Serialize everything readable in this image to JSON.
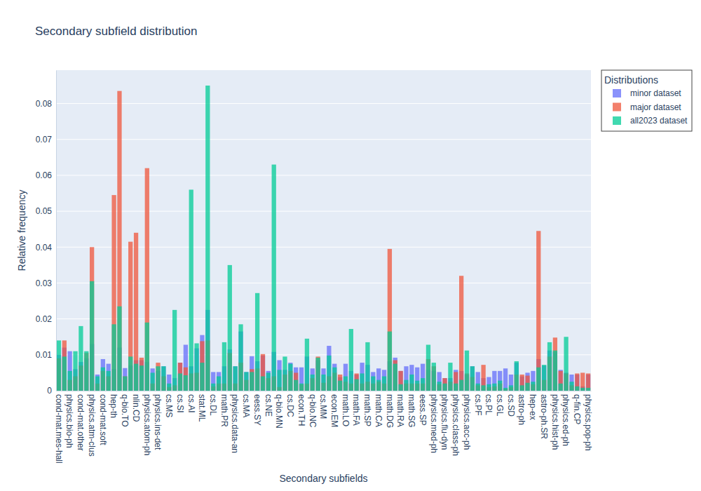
{
  "chart_data": {
    "type": "bar",
    "title": "Secondary subfield distribution",
    "x_label": "Secondary subfields",
    "y_label": "Relative frequency",
    "legend_title": "Distributions",
    "legend": "right",
    "grid": true,
    "ylim": [
      0,
      0.0893
    ],
    "yticks": [
      0,
      0.01,
      0.02,
      0.03,
      0.04,
      0.05,
      0.06,
      0.07,
      0.08
    ],
    "categories": [
      "cond-mat.mes-hall",
      null,
      "physics.bio-ph",
      null,
      "cond-mat.other",
      null,
      "physics.atm-clus",
      null,
      "cond-mat.soft",
      null,
      "hep-th",
      null,
      "q-bio.TO",
      null,
      "nlin.CD",
      null,
      "physics.atom-ph",
      null,
      "physics.ins-det",
      null,
      "cs.MS",
      null,
      "cs.SI",
      null,
      "cs.AI",
      null,
      "stat.ML",
      null,
      "cs.DL",
      null,
      "math.PR",
      null,
      "physics.data-an",
      null,
      "cs.MA",
      null,
      "eess.SY",
      null,
      "cs.NE",
      null,
      "q-bio.MN",
      null,
      "cs.DC",
      null,
      "econ.TH",
      null,
      "q-bio.NC",
      null,
      "cs.MM",
      null,
      "econ.EM",
      null,
      "math.LO",
      null,
      "math.FA",
      null,
      "math.SP",
      null,
      "math.CA",
      null,
      "math.DG",
      null,
      "math.RA",
      null,
      "math.SG",
      null,
      "eess.SP",
      null,
      "physics.med-ph",
      null,
      "physics.flu-dyn",
      null,
      "physics.class-ph",
      null,
      "physics.acc-ph",
      null,
      "cs.PF",
      null,
      "cs.PL",
      null,
      "cs.GL",
      null,
      "cs.SD",
      null,
      "astro-ph",
      null,
      "hep-ex",
      null,
      "astro-ph.SR",
      null,
      "physics.hist-ph",
      null,
      "physics.ed-ph",
      null,
      "q-fin.CP",
      null,
      "physics.pop-ph"
    ],
    "series": [
      {
        "name": "minor dataset",
        "color": "#636efa",
        "values": [
          0.01,
          0.012,
          0.011,
          0.006,
          0.008,
          0.009,
          0.013,
          0.0045,
          0.0088,
          0.0075,
          0.006,
          0.012,
          0.0063,
          0.007,
          0.0085,
          0.0085,
          0.008,
          0.0062,
          0.0055,
          0.0068,
          0.0045,
          0.0035,
          0.0078,
          0.0128,
          0.0068,
          0.0118,
          0.0155,
          0.0225,
          0.0052,
          0.0052,
          0.0068,
          0.0115,
          0.0068,
          0.0165,
          0.0052,
          0.0096,
          0.0082,
          0.0098,
          0.0055,
          0.0108,
          0.0085,
          0.0058,
          0.0078,
          0.0065,
          0.0065,
          0.0095,
          0.0062,
          0.0085,
          0.0062,
          0.0125,
          0.0075,
          0.0038,
          0.0075,
          0.0055,
          0.0045,
          0.0078,
          0.0072,
          0.0052,
          0.0062,
          0.0058,
          0.0082,
          0.0092,
          0.0055,
          0.0068,
          0.0072,
          0.0065,
          0.0075,
          0.0058,
          0.0055,
          0.0052,
          0.0035,
          0.0035,
          0.0058,
          0.0055,
          0.0045,
          0.0068,
          0.0052,
          0.0035,
          0.0038,
          0.0055,
          0.0055,
          0.0062,
          0.0045,
          0.0078,
          0.004,
          0.005,
          0.0055,
          0.0088,
          0.007,
          0.0112,
          0.0108,
          0.0058,
          0.005,
          0.0045,
          0.0045,
          0.0012,
          0.0045
        ]
      },
      {
        "name": "major dataset",
        "color": "#ef553b",
        "values": [
          0.009,
          0.014,
          0.003,
          0.004,
          0.007,
          0.0105,
          0.04,
          0.002,
          0.0055,
          0.004,
          0.0545,
          0.0835,
          0.004,
          0.0415,
          0.044,
          0.0092,
          0.062,
          0.002,
          0.0078,
          0.004,
          0.001,
          0.0015,
          0.0078,
          0.0065,
          0.0048,
          0.005,
          0.0138,
          0.014,
          0.0012,
          0.002,
          0.002,
          0.0105,
          0.002,
          0.0078,
          0.003,
          0.006,
          0.0062,
          0.0102,
          0.0035,
          0.004,
          0.001,
          0.0045,
          0.0055,
          0.005,
          0.0018,
          0.002,
          0.0035,
          0.0095,
          0.0022,
          0.004,
          0.005,
          0.0045,
          0.0025,
          0.002,
          0.0048,
          0.002,
          0.0025,
          0.002,
          0.0025,
          0.002,
          0.0395,
          0.0085,
          0.0055,
          0.002,
          0.002,
          0.002,
          0.002,
          0.0088,
          0.0068,
          0.0018,
          0.0035,
          0.0025,
          0.0052,
          0.032,
          0.0048,
          0.0038,
          0.0015,
          0.0072,
          0.001,
          0.0012,
          0.002,
          0.0005,
          0.001,
          0.0045,
          0.0045,
          0.0042,
          0.0018,
          0.0445,
          0.003,
          0.0095,
          0.0148,
          0.0055,
          0.0048,
          0.0015,
          0.0048,
          0.005,
          0.0048
        ]
      },
      {
        "name": "all2023 dataset",
        "color": "#00cc96",
        "values": [
          0.014,
          0.0095,
          0.0055,
          0.011,
          0.018,
          0.011,
          0.0305,
          0.004,
          0.0065,
          0.0055,
          0.0185,
          0.0235,
          0.004,
          0.0095,
          0.0075,
          0.007,
          0.019,
          0.005,
          0.0068,
          0.0068,
          0.002,
          0.0225,
          0.0048,
          0.0043,
          0.056,
          0.0132,
          0.0078,
          0.085,
          0.002,
          0.004,
          0.0135,
          0.035,
          0.0068,
          0.0185,
          0.0052,
          0.0052,
          0.0272,
          0.004,
          0.005,
          0.063,
          0.0058,
          0.0095,
          0.0075,
          0.003,
          0.002,
          0.0145,
          0.0045,
          0.0092,
          0.0045,
          0.0098,
          0.0065,
          0.0028,
          0.004,
          0.0172,
          0.0032,
          0.0048,
          0.0135,
          0.004,
          0.003,
          0.004,
          0.0165,
          0.0075,
          0.0018,
          0.003,
          0.0045,
          0.0028,
          0.0035,
          0.0128,
          0.0078,
          0.0025,
          0.002,
          0.0078,
          0.002,
          0.003,
          0.0112,
          0.0068,
          0.002,
          0.0015,
          0.0018,
          0.002,
          0.0028,
          0.0008,
          0.0015,
          0.0082,
          0.0015,
          0.0022,
          0.0025,
          0.0065,
          0.0072,
          0.0135,
          0.0112,
          0.002,
          0.015,
          0.0025,
          0.0012,
          0.0008,
          0.0008
        ]
      }
    ]
  }
}
